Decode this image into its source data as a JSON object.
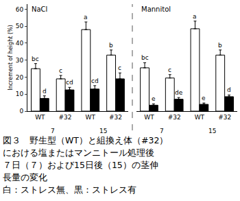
{
  "chart_data": [
    {
      "type": "bar",
      "title": "NaCl",
      "y_label": "Increment of height (%)",
      "categories": [
        "WT",
        "#32",
        "WT",
        "#32"
      ],
      "days": [
        "7",
        "7",
        "15",
        "15"
      ],
      "ylim": [
        0,
        63
      ],
      "yticks": [
        0,
        10,
        20,
        30,
        40,
        50,
        60
      ],
      "series": [
        {
          "color": "#ffffff",
          "values": [
            25,
            19,
            48,
            33
          ],
          "errors": [
            3,
            2,
            4.5,
            3
          ],
          "letters": [
            "bc",
            "c",
            "a",
            "b"
          ]
        },
        {
          "color": "#000000",
          "values": [
            7.5,
            12.5,
            13,
            19
          ],
          "errors": [
            1.5,
            1.5,
            2,
            3.5
          ],
          "letters": [
            "d",
            "cd",
            "cd",
            "c"
          ]
        }
      ]
    },
    {
      "type": "bar",
      "title": "Mannitol",
      "categories": [
        "WT",
        "#32",
        "WT",
        "#32"
      ],
      "days": [
        "7",
        "7",
        "15",
        "15"
      ],
      "ylim": [
        0,
        63
      ],
      "tick_labels": "x",
      "series": [
        {
          "color": "#ffffff",
          "values": [
            25.5,
            19.5,
            48.5,
            33
          ],
          "errors": [
            3,
            2,
            4.5,
            3
          ],
          "letters": [
            "bc",
            "c",
            "a",
            "b"
          ]
        },
        {
          "color": "#000000",
          "values": [
            3.5,
            7,
            4,
            8.5
          ],
          "errors": [
            0.8,
            1,
            0.8,
            1
          ],
          "letters": [
            "e",
            "de",
            "e",
            "d"
          ]
        }
      ]
    }
  ],
  "caption": [
    "図３　野生型（WT）と組換え体（#32）",
    "における塩またはマンニトール処理後",
    "７日（７）および15日後（15）の茎伸",
    "長量の変化",
    "白：ストレス無、黒：ストレス有"
  ]
}
